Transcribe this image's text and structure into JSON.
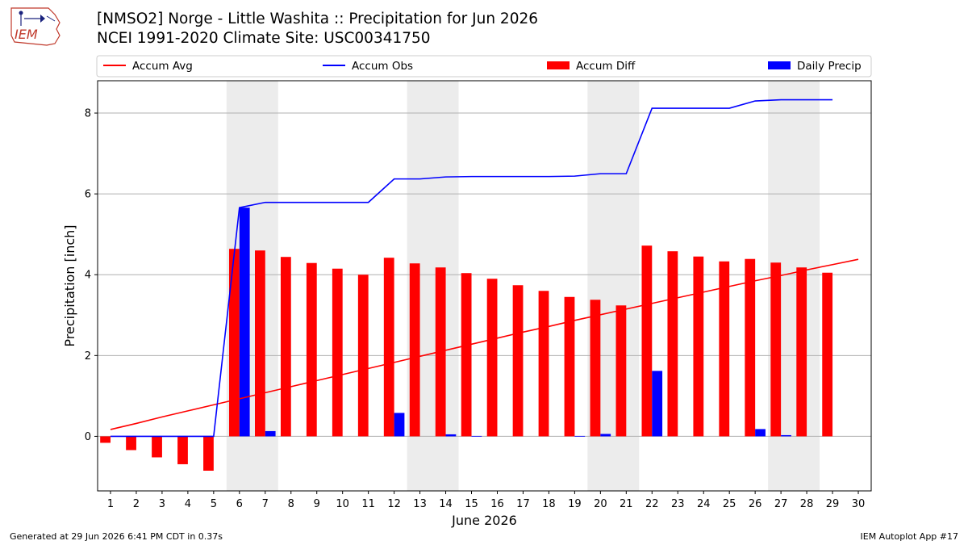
{
  "header": {
    "logo_text": "IEM",
    "title": "[NMSO2] Norge - Little Washita :: Precipitation for Jun 2026",
    "subtitle": "NCEI 1991-2020 Climate Site: USC00341750"
  },
  "footer": {
    "left": "Generated at 29 Jun 2026 6:41 PM CDT in 0.37s",
    "right": "IEM Autoplot App #17"
  },
  "colors": {
    "avg": "#ff0000",
    "obs": "#0000ff",
    "diff": "#ff0000",
    "daily": "#0000ff",
    "weekend": "#ececec",
    "grid": "#b0b0b0"
  },
  "chart_data": {
    "type": "bar",
    "xlabel": "June 2026",
    "ylabel": "Precipitation [inch]",
    "xlim": [
      0.5,
      30.5
    ],
    "ylim": [
      -1.35,
      8.8
    ],
    "yticks": [
      0,
      2,
      4,
      6,
      8
    ],
    "grid": "y",
    "legend_position": "top",
    "legend": [
      "Accum Avg",
      "Accum Obs",
      "Accum Diff",
      "Daily Precip"
    ],
    "weekends": [
      [
        6,
        7
      ],
      [
        13,
        14
      ],
      [
        20,
        21
      ],
      [
        27,
        28
      ]
    ],
    "days": [
      1,
      2,
      3,
      4,
      5,
      6,
      7,
      8,
      9,
      10,
      11,
      12,
      13,
      14,
      15,
      16,
      17,
      18,
      19,
      20,
      21,
      22,
      23,
      24,
      25,
      26,
      27,
      28,
      29,
      30
    ],
    "series": [
      {
        "name": "Accum Avg",
        "kind": "line",
        "values": [
          0.17,
          0.32,
          0.48,
          0.63,
          0.78,
          0.93,
          1.08,
          1.23,
          1.38,
          1.53,
          1.68,
          1.83,
          1.98,
          2.13,
          2.28,
          2.43,
          2.58,
          2.72,
          2.87,
          3.01,
          3.15,
          3.29,
          3.43,
          3.57,
          3.71,
          3.85,
          3.98,
          4.12,
          4.25,
          4.38
        ]
      },
      {
        "name": "Accum Obs",
        "kind": "line",
        "values": [
          0,
          0,
          0,
          0,
          0,
          5.66,
          5.79,
          5.79,
          5.79,
          5.79,
          5.79,
          6.37,
          6.37,
          6.42,
          6.43,
          6.43,
          6.43,
          6.43,
          6.44,
          6.5,
          6.5,
          8.12,
          8.12,
          8.12,
          8.12,
          8.3,
          8.33,
          8.33,
          8.33
        ]
      },
      {
        "name": "Accum Diff",
        "kind": "bar",
        "values": [
          -0.16,
          -0.34,
          -0.52,
          -0.69,
          -0.85,
          4.64,
          4.6,
          4.44,
          4.29,
          4.15,
          4.0,
          4.42,
          4.28,
          4.18,
          4.04,
          3.9,
          3.74,
          3.6,
          3.45,
          3.38,
          3.24,
          4.72,
          4.58,
          4.45,
          4.33,
          4.39,
          4.3,
          4.18,
          4.05
        ]
      },
      {
        "name": "Daily Precip",
        "kind": "bar",
        "values": [
          0,
          0,
          0,
          0,
          0,
          5.66,
          0.13,
          0,
          0,
          0,
          0,
          0.58,
          0,
          0.05,
          0.01,
          0,
          0,
          0,
          0.01,
          0.06,
          0,
          1.62,
          0,
          0,
          0,
          0.18,
          0.03,
          0,
          0
        ]
      }
    ]
  }
}
